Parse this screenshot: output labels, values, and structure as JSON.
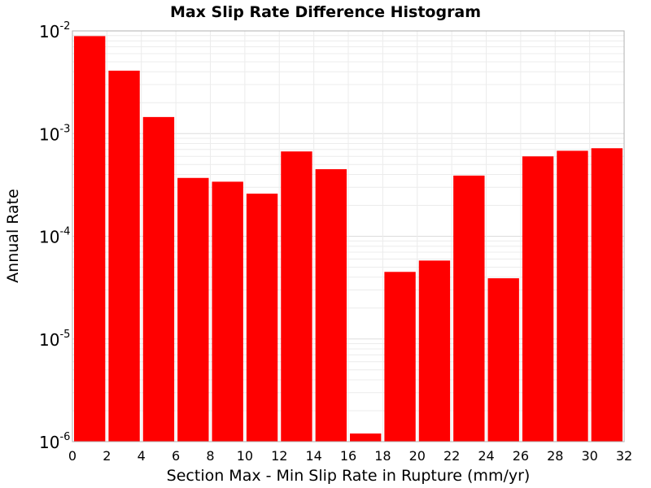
{
  "chart_data": {
    "type": "bar",
    "title": "Max Slip Rate Difference Histogram",
    "xlabel": "Section Max - Min Slip Rate in Rupture (mm/yr)",
    "ylabel": "Annual Rate",
    "yscale": "log",
    "xlim": [
      0,
      32
    ],
    "ylim": [
      1e-06,
      0.01
    ],
    "x_ticks": [
      "0",
      "2",
      "4",
      "6",
      "8",
      "10",
      "12",
      "14",
      "16",
      "18",
      "20",
      "22",
      "24",
      "26",
      "28",
      "30",
      "32"
    ],
    "y_ticks": [
      {
        "base": "10",
        "exp": "-2",
        "value": 0.01
      },
      {
        "base": "10",
        "exp": "-3",
        "value": 0.001
      },
      {
        "base": "10",
        "exp": "-4",
        "value": 0.0001
      },
      {
        "base": "10",
        "exp": "-5",
        "value": 1e-05
      },
      {
        "base": "10",
        "exp": "-6",
        "value": 1e-06
      }
    ],
    "bin_width": 2,
    "bins": [
      {
        "x0": 0,
        "value": 0.0089
      },
      {
        "x0": 2,
        "value": 0.0041
      },
      {
        "x0": 4,
        "value": 0.00145
      },
      {
        "x0": 6,
        "value": 0.00037
      },
      {
        "x0": 8,
        "value": 0.00034
      },
      {
        "x0": 10,
        "value": 0.00026
      },
      {
        "x0": 12,
        "value": 0.00067
      },
      {
        "x0": 14,
        "value": 0.00045
      },
      {
        "x0": 16,
        "value": 1.2e-06
      },
      {
        "x0": 18,
        "value": 4.5e-05
      },
      {
        "x0": 20,
        "value": 5.8e-05
      },
      {
        "x0": 22,
        "value": 0.00039
      },
      {
        "x0": 24,
        "value": 3.9e-05
      },
      {
        "x0": 26,
        "value": 0.0006
      },
      {
        "x0": 28,
        "value": 0.00068
      },
      {
        "x0": 30,
        "value": 0.00072
      }
    ],
    "grid": true,
    "bar_color": "#ff0000"
  }
}
